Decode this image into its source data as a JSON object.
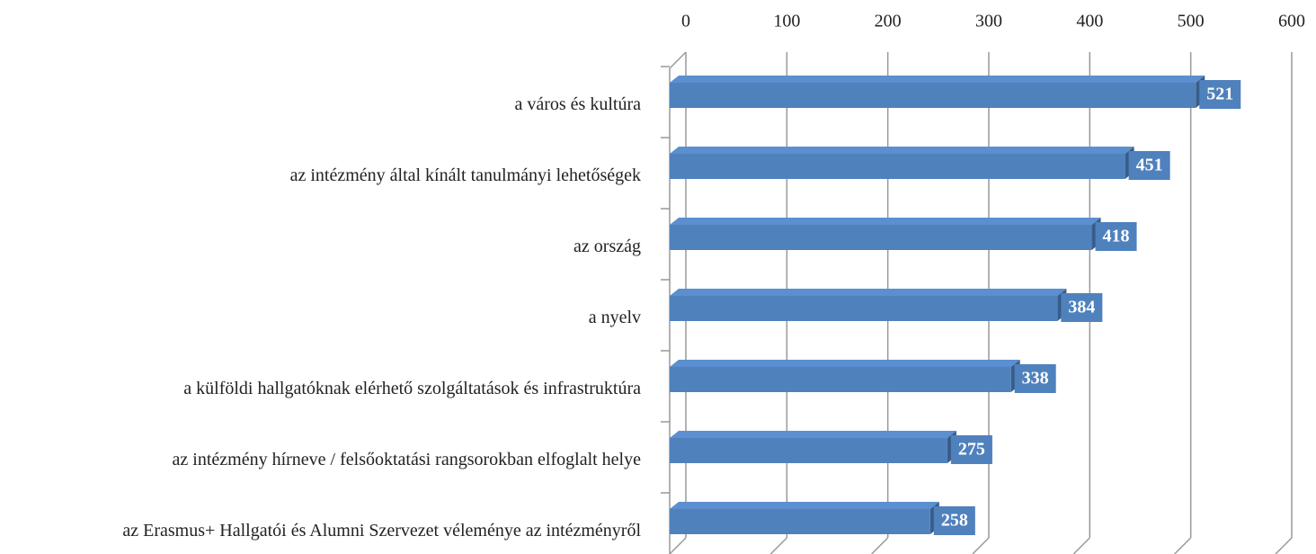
{
  "chart_data": {
    "type": "bar",
    "orientation": "horizontal",
    "categories": [
      "a város és kultúra",
      "az intézmény által kínált tanulmányi lehetőségek",
      "az ország",
      "a nyelv",
      "a külföldi hallgatóknak elérhető szolgáltatások és infrastruktúra",
      "az intézmény hírneve / felsőoktatási rangsorokban elfoglalt helye",
      "az Erasmus+ Hallgatói és Alumni Szervezet véleménye az intézményről"
    ],
    "values": [
      521,
      451,
      418,
      384,
      338,
      275,
      258
    ],
    "color": "#4f81bd",
    "xlim": [
      0,
      600
    ],
    "xticks": [
      0,
      100,
      200,
      300,
      400,
      500,
      600
    ],
    "grid": true
  }
}
